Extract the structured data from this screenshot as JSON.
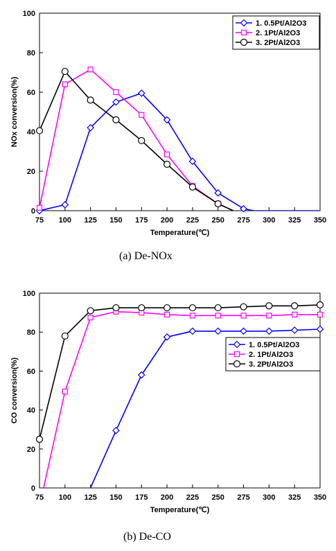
{
  "chart_data": [
    {
      "type": "line",
      "caption": "(a)  De-NOx",
      "xlabel": "Temperature(℃)",
      "ylabel": "NOx conversion(%)",
      "xlim": [
        75,
        350
      ],
      "ylim": [
        0,
        100
      ],
      "xticks": [
        75,
        100,
        125,
        150,
        175,
        200,
        225,
        250,
        275,
        300,
        325,
        350
      ],
      "yticks": [
        0,
        20,
        40,
        60,
        80,
        100
      ],
      "legend_position": "top-right",
      "grid": false,
      "series": [
        {
          "name": "1. 0.5Pt/Al2O3",
          "color": "#0000ff",
          "marker": "diamond",
          "x": [
            75,
            100,
            125,
            150,
            175,
            200,
            225,
            250,
            275
          ],
          "y": [
            0,
            3,
            42,
            55,
            59.5,
            46,
            25,
            9,
            1
          ],
          "tail": [
            [
              285,
              0
            ],
            [
              350,
              0
            ]
          ]
        },
        {
          "name": "2. 1Pt/Al2O3",
          "color": "#ff00ff",
          "marker": "square",
          "x": [
            75,
            100,
            125,
            150,
            175,
            200,
            225,
            250
          ],
          "y": [
            1.5,
            64,
            71.5,
            60,
            48.5,
            28.5,
            12.5,
            3.5
          ],
          "tail": [
            [
              265,
              0
            ]
          ]
        },
        {
          "name": "3. 2Pt/Al2O3",
          "color": "#000000",
          "marker": "circle",
          "x": [
            75,
            100,
            125,
            150,
            175,
            200,
            225,
            250
          ],
          "y": [
            40.5,
            70.5,
            56,
            46,
            35.5,
            23.5,
            12,
            3.5
          ],
          "tail": [
            [
              265,
              0
            ]
          ]
        }
      ]
    },
    {
      "type": "line",
      "caption": "(b)  De-CO",
      "xlabel": "Temperature(℃)",
      "ylabel": "CO conversion(%)",
      "xlim": [
        75,
        350
      ],
      "ylim": [
        0,
        100
      ],
      "xticks": [
        75,
        100,
        125,
        150,
        175,
        200,
        225,
        250,
        275,
        300,
        325,
        350
      ],
      "yticks": [
        0,
        20,
        40,
        60,
        80,
        100
      ],
      "legend_position": "right",
      "grid": false,
      "series": [
        {
          "name": "1. 0.5Pt/Al2O3",
          "color": "#0000ff",
          "marker": "diamond",
          "x": [
            150,
            175,
            200,
            225,
            250,
            275,
            300,
            325,
            350
          ],
          "y": [
            29.5,
            58,
            77.5,
            80.5,
            80.5,
            80.5,
            80.5,
            81,
            81.5
          ],
          "head": [
            [
              125,
              0
            ]
          ]
        },
        {
          "name": "2. 1Pt/Al2O3",
          "color": "#ff00ff",
          "marker": "square",
          "x": [
            100,
            125,
            150,
            175,
            200,
            225,
            250,
            275,
            300,
            325,
            350
          ],
          "y": [
            49.5,
            87.5,
            90.5,
            90,
            89,
            88.5,
            88.5,
            88.5,
            88.5,
            89,
            89
          ],
          "head": [
            [
              79,
              0
            ]
          ]
        },
        {
          "name": "3. 2Pt/Al2O3",
          "color": "#000000",
          "marker": "circle",
          "x": [
            75,
            100,
            125,
            150,
            175,
            200,
            225,
            250,
            275,
            300,
            325,
            350
          ],
          "y": [
            25,
            78,
            91,
            92.5,
            92.5,
            92.5,
            92.5,
            92.5,
            93,
            93.5,
            93.5,
            94
          ]
        }
      ]
    }
  ]
}
